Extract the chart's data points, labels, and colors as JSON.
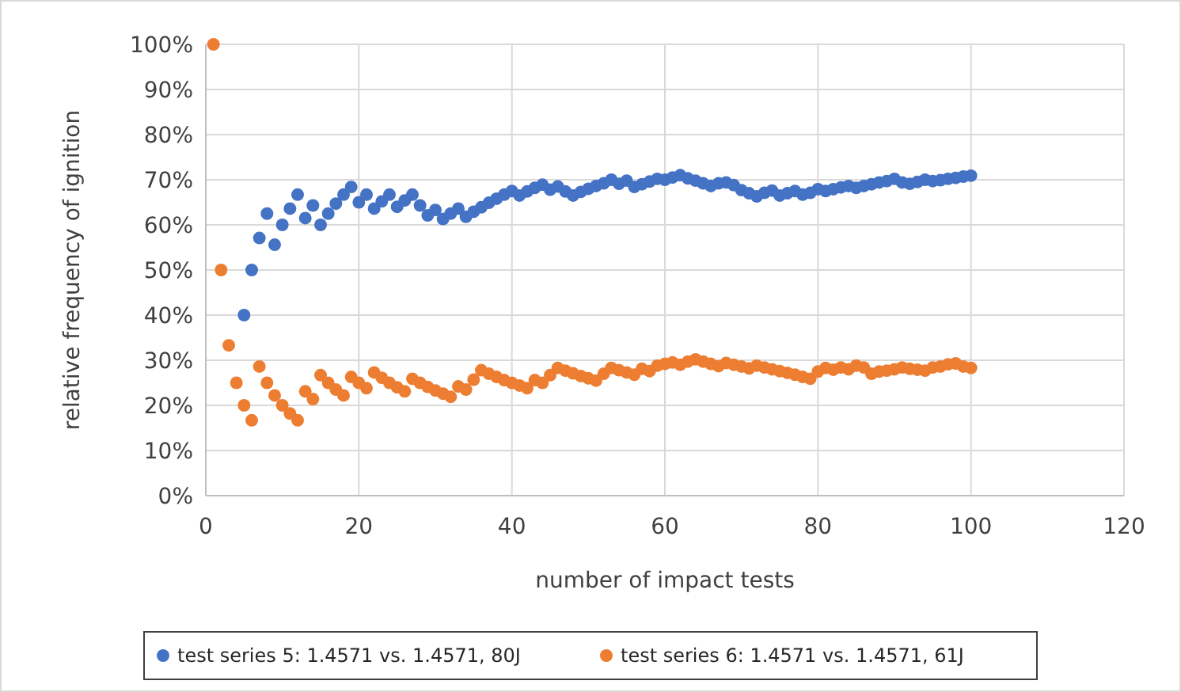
{
  "chart_data": {
    "type": "scatter",
    "xlabel": "number of impact tests",
    "ylabel": "relative frequency of ignition",
    "x": [
      1,
      2,
      3,
      4,
      5,
      6,
      7,
      8,
      9,
      10,
      11,
      12,
      13,
      14,
      15,
      16,
      17,
      18,
      19,
      20,
      21,
      22,
      23,
      24,
      25,
      26,
      27,
      28,
      29,
      30,
      31,
      32,
      33,
      34,
      35,
      36,
      37,
      38,
      39,
      40,
      41,
      42,
      43,
      44,
      45,
      46,
      47,
      48,
      49,
      50,
      51,
      52,
      53,
      54,
      55,
      56,
      57,
      58,
      59,
      60,
      61,
      62,
      63,
      64,
      65,
      66,
      67,
      68,
      69,
      70,
      71,
      72,
      73,
      74,
      75,
      76,
      77,
      78,
      79,
      80,
      81,
      82,
      83,
      84,
      85,
      86,
      87,
      88,
      89,
      90,
      91,
      92,
      93,
      94,
      95,
      96,
      97,
      98,
      99,
      100
    ],
    "xlim": [
      0,
      120
    ],
    "xticks": [
      0,
      20,
      40,
      60,
      80,
      100,
      120
    ],
    "ylim": [
      0,
      100
    ],
    "yticks": [
      {
        "value": 0,
        "label": "0%"
      },
      {
        "value": 10,
        "label": "10%"
      },
      {
        "value": 20,
        "label": "20%"
      },
      {
        "value": 30,
        "label": "30%"
      },
      {
        "value": 40,
        "label": "40%"
      },
      {
        "value": 50,
        "label": "50%"
      },
      {
        "value": 60,
        "label": "60%"
      },
      {
        "value": 70,
        "label": "70%"
      },
      {
        "value": 80,
        "label": "80%"
      },
      {
        "value": 90,
        "label": "90%"
      },
      {
        "value": 100,
        "label": "100%"
      }
    ],
    "grid": true,
    "legend": "bottom",
    "marker": "circle",
    "series": [
      {
        "name": "test series 5: 1.4571 vs. 1.4571, 80J",
        "color": "#4472c4",
        "values": [
          null,
          null,
          null,
          null,
          40,
          50,
          57.1,
          62.5,
          55.6,
          60,
          63.6,
          66.7,
          61.5,
          64.3,
          60,
          62.5,
          64.7,
          66.7,
          68.4,
          65,
          66.7,
          63.6,
          65.2,
          66.7,
          64,
          65.4,
          66.7,
          64.3,
          62.1,
          63.3,
          61.3,
          62.5,
          63.6,
          61.8,
          62.9,
          63.9,
          64.9,
          65.8,
          66.7,
          67.5,
          66.5,
          67.4,
          68.2,
          68.9,
          67.8,
          68.5,
          67.4,
          66.5,
          67.3,
          68,
          68.6,
          69.2,
          70,
          69.1,
          69.8,
          68.4,
          69,
          69.6,
          70.2,
          70,
          70.5,
          71,
          70.3,
          69.8,
          69.2,
          68.6,
          69.2,
          69.4,
          68.8,
          67.7,
          67,
          66.3,
          67.1,
          67.6,
          66.5,
          67,
          67.5,
          66.7,
          67.1,
          67.9,
          67.5,
          67.9,
          68.3,
          68.6,
          68.2,
          68.6,
          69,
          69.4,
          69.7,
          70.2,
          69.4,
          69.1,
          69.5,
          70,
          69.7,
          69.9,
          70.2,
          70.4,
          70.7,
          70.9
        ]
      },
      {
        "name": "test series 6: 1.4571 vs. 1.4571, 61J",
        "color": "#ed7d31",
        "values": [
          100,
          50,
          33.3,
          25,
          20,
          16.7,
          28.6,
          25,
          22.2,
          20,
          18.2,
          16.7,
          23.1,
          21.4,
          26.7,
          25,
          23.5,
          22.2,
          26.3,
          25,
          23.8,
          27.3,
          26.1,
          25,
          24,
          23.1,
          25.9,
          25,
          24.1,
          23.3,
          22.6,
          21.9,
          24.2,
          23.5,
          25.7,
          27.8,
          27,
          26.3,
          25.6,
          25,
          24.4,
          23.8,
          25.6,
          25,
          26.7,
          28.3,
          27.7,
          27.1,
          26.5,
          26,
          25.5,
          27,
          28.3,
          27.8,
          27.3,
          26.8,
          28.1,
          27.6,
          28.8,
          29.2,
          29.5,
          29,
          29.7,
          30.2,
          29.7,
          29.2,
          28.7,
          29.4,
          29,
          28.6,
          28.2,
          28.8,
          28.4,
          28,
          27.6,
          27.2,
          26.8,
          26.3,
          25.9,
          27.5,
          28.3,
          27.9,
          28.4,
          28,
          28.8,
          28.4,
          27,
          27.5,
          27.7,
          28,
          28.4,
          28.1,
          27.9,
          27.7,
          28.4,
          28.6,
          29.1,
          29.3,
          28.6,
          28.3
        ]
      }
    ]
  }
}
